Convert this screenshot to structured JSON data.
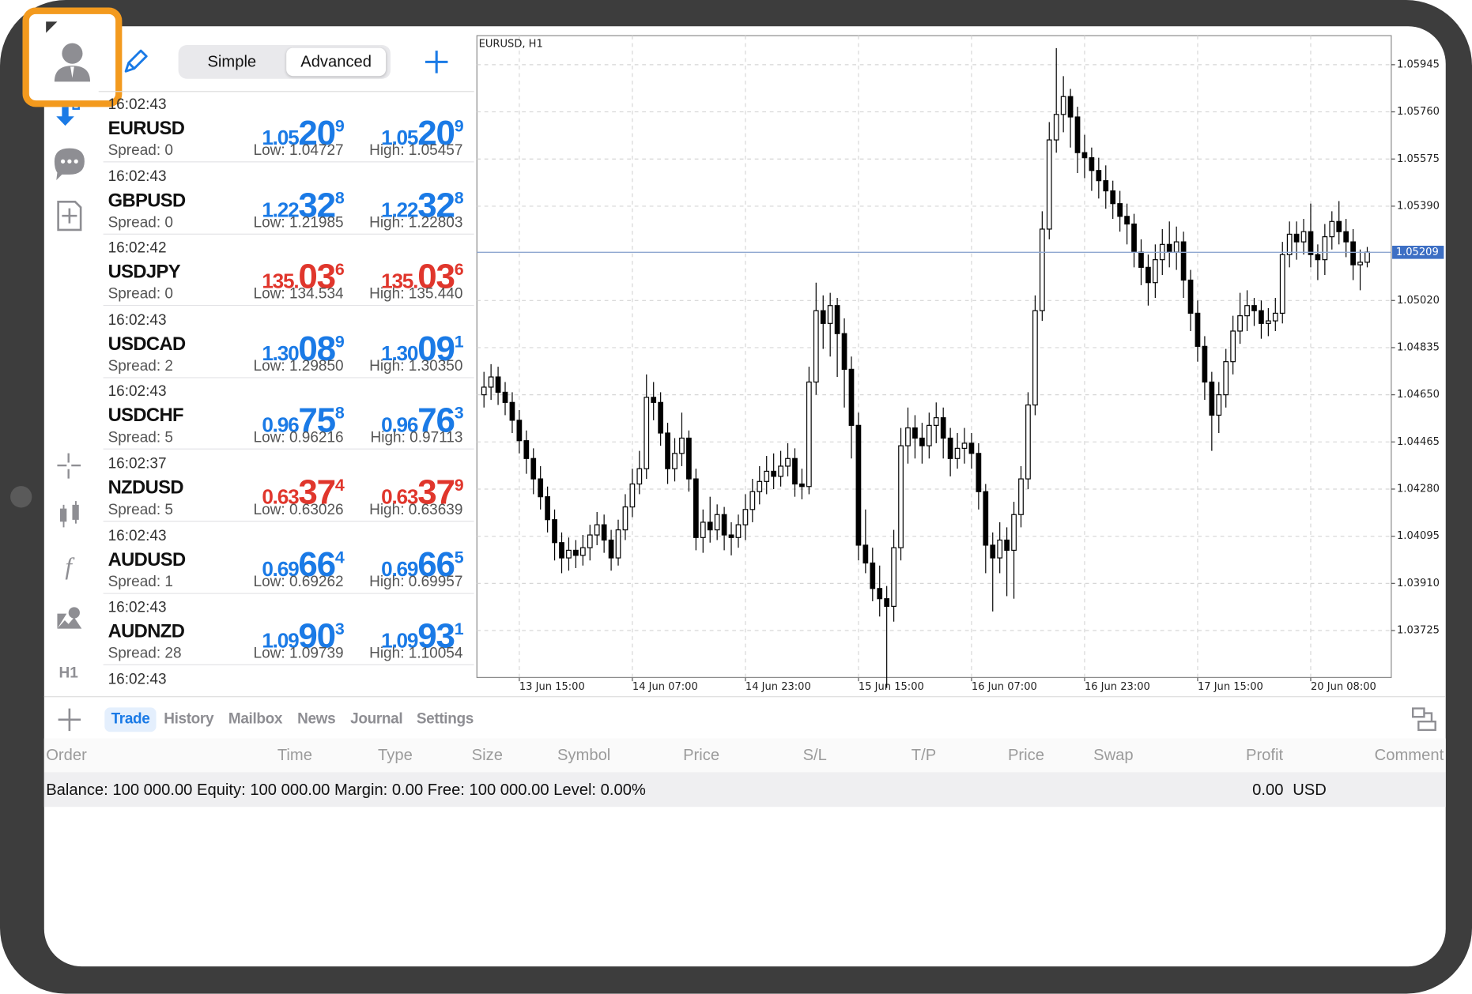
{
  "sidebar": {
    "timeframe": "H1"
  },
  "toolbar": {
    "modes": [
      "Simple",
      "Advanced"
    ],
    "selected_mode": 1
  },
  "quotes": [
    {
      "time": "16:02:43",
      "symbol": "EURUSD",
      "spread": "Spread: 0",
      "bid": {
        "prefix": "1.05",
        "big": "20",
        "last": "9"
      },
      "ask": {
        "prefix": "1.05",
        "big": "20",
        "last": "9"
      },
      "low": "Low: 1.04727",
      "high": "High: 1.05457",
      "color": "#1a7ae6"
    },
    {
      "time": "16:02:43",
      "symbol": "GBPUSD",
      "spread": "Spread: 0",
      "bid": {
        "prefix": "1.22",
        "big": "32",
        "last": "8"
      },
      "ask": {
        "prefix": "1.22",
        "big": "32",
        "last": "8"
      },
      "low": "Low: 1.21985",
      "high": "High: 1.22803",
      "color": "#1a7ae6"
    },
    {
      "time": "16:02:42",
      "symbol": "USDJPY",
      "spread": "Spread: 0",
      "bid": {
        "prefix": "135.",
        "big": "03",
        "last": "6"
      },
      "ask": {
        "prefix": "135.",
        "big": "03",
        "last": "6"
      },
      "low": "Low: 134.534",
      "high": "High: 135.440",
      "color": "#e0362c"
    },
    {
      "time": "16:02:43",
      "symbol": "USDCAD",
      "spread": "Spread: 2",
      "bid": {
        "prefix": "1.30",
        "big": "08",
        "last": "9"
      },
      "ask": {
        "prefix": "1.30",
        "big": "09",
        "last": "1"
      },
      "low": "Low: 1.29850",
      "high": "High: 1.30350",
      "color": "#1a7ae6"
    },
    {
      "time": "16:02:43",
      "symbol": "USDCHF",
      "spread": "Spread: 5",
      "bid": {
        "prefix": "0.96",
        "big": "75",
        "last": "8"
      },
      "ask": {
        "prefix": "0.96",
        "big": "76",
        "last": "3"
      },
      "low": "Low: 0.96216",
      "high": "High: 0.97113",
      "color": "#1a7ae6"
    },
    {
      "time": "16:02:37",
      "symbol": "NZDUSD",
      "spread": "Spread: 5",
      "bid": {
        "prefix": "0.63",
        "big": "37",
        "last": "4"
      },
      "ask": {
        "prefix": "0.63",
        "big": "37",
        "last": "9"
      },
      "low": "Low: 0.63026",
      "high": "High: 0.63639",
      "color": "#e0362c"
    },
    {
      "time": "16:02:43",
      "symbol": "AUDUSD",
      "spread": "Spread: 1",
      "bid": {
        "prefix": "0.69",
        "big": "66",
        "last": "4"
      },
      "ask": {
        "prefix": "0.69",
        "big": "66",
        "last": "5"
      },
      "low": "Low: 0.69262",
      "high": "High: 0.69957",
      "color": "#1a7ae6"
    },
    {
      "time": "16:02:43",
      "symbol": "AUDNZD",
      "spread": "Spread: 28",
      "bid": {
        "prefix": "1.09",
        "big": "90",
        "last": "3"
      },
      "ask": {
        "prefix": "1.09",
        "big": "93",
        "last": "1"
      },
      "low": "Low: 1.09739",
      "high": "High: 1.10054",
      "color": "#1a7ae6"
    }
  ],
  "partial_quote_time": "16:02:43",
  "chart_data": {
    "type": "candlestick",
    "title": "EURUSD, H1",
    "open": [
      1.0465,
      1.0468,
      1.0472,
      1.0466,
      1.0462,
      1.0455,
      1.0447,
      1.044,
      1.0432,
      1.0425,
      1.0416,
      1.0407,
      1.0401,
      1.0404,
      1.0402,
      1.0405,
      1.041,
      1.0414,
      1.0408,
      1.0401,
      1.0412,
      1.0421,
      1.043,
      1.0436,
      1.0464,
      1.0462,
      1.045,
      1.0436,
      1.0442,
      1.0448,
      1.0432,
      1.0409,
      1.0415,
      1.0412,
      1.0418,
      1.041,
      1.0409,
      1.0414,
      1.042,
      1.0427,
      1.0431,
      1.0435,
      1.0433,
      1.0437,
      1.044,
      1.043,
      1.0429,
      1.047,
      1.0498,
      1.0493,
      1.05,
      1.0489,
      1.0475,
      1.0453,
      1.0406,
      1.0399,
      1.0389,
      1.0385,
      1.0382,
      1.0405,
      1.0445,
      1.0452,
      1.0448,
      1.0445,
      1.0453,
      1.0456,
      1.0448,
      1.044,
      1.0444,
      1.0446,
      1.0442,
      1.0427,
      1.0406,
      1.0401,
      1.0408,
      1.0404,
      1.0418,
      1.0432,
      1.0461,
      1.0498,
      1.053,
      1.0565,
      1.0575,
      1.0582,
      1.0574,
      1.056,
      1.0558,
      1.0553,
      1.0549,
      1.0545,
      1.054,
      1.0535,
      1.0532,
      1.0521,
      1.0515,
      1.0509,
      1.0518,
      1.0524,
      1.0521,
      1.0525,
      1.051,
      1.0497,
      1.0484,
      1.047,
      1.0457,
      1.0465,
      1.0478,
      1.049,
      1.0496,
      1.05,
      1.0498,
      1.0493,
      1.0494,
      1.0497,
      1.052,
      1.0528,
      1.0525,
      1.0529,
      1.052,
      1.0518,
      1.0527,
      1.0533,
      1.0529,
      1.0525,
      1.0516,
      1.0517
    ],
    "close": [
      1.0468,
      1.0472,
      1.0466,
      1.0462,
      1.0455,
      1.0447,
      1.044,
      1.0432,
      1.0425,
      1.0416,
      1.0407,
      1.0401,
      1.0404,
      1.0402,
      1.0405,
      1.041,
      1.0414,
      1.0408,
      1.0401,
      1.0412,
      1.0421,
      1.043,
      1.0436,
      1.0464,
      1.0462,
      1.045,
      1.0436,
      1.0442,
      1.0448,
      1.0432,
      1.0409,
      1.0415,
      1.0412,
      1.0418,
      1.041,
      1.0409,
      1.0414,
      1.042,
      1.0427,
      1.0431,
      1.0435,
      1.0433,
      1.0437,
      1.044,
      1.043,
      1.0429,
      1.047,
      1.0498,
      1.0493,
      1.05,
      1.0489,
      1.0475,
      1.0453,
      1.0406,
      1.0399,
      1.0389,
      1.0385,
      1.0382,
      1.0405,
      1.0445,
      1.0452,
      1.0448,
      1.0445,
      1.0453,
      1.0456,
      1.0448,
      1.044,
      1.0444,
      1.0446,
      1.0442,
      1.0427,
      1.0406,
      1.0401,
      1.0408,
      1.0404,
      1.0418,
      1.0432,
      1.0461,
      1.0498,
      1.053,
      1.0565,
      1.0575,
      1.0582,
      1.0574,
      1.056,
      1.0558,
      1.0553,
      1.0549,
      1.0545,
      1.054,
      1.0535,
      1.0532,
      1.0521,
      1.0515,
      1.0509,
      1.0518,
      1.0524,
      1.0521,
      1.0525,
      1.051,
      1.0497,
      1.0484,
      1.047,
      1.0457,
      1.0465,
      1.0478,
      1.049,
      1.0496,
      1.05,
      1.0498,
      1.0493,
      1.0494,
      1.0497,
      1.052,
      1.0528,
      1.0525,
      1.0529,
      1.052,
      1.0518,
      1.0527,
      1.0533,
      1.0529,
      1.0525,
      1.0516,
      1.0517,
      1.0521
    ],
    "high": [
      1.0474,
      1.0477,
      1.0476,
      1.047,
      1.0466,
      1.0459,
      1.0451,
      1.0444,
      1.0437,
      1.0429,
      1.042,
      1.0411,
      1.0409,
      1.0408,
      1.041,
      1.0414,
      1.0419,
      1.0418,
      1.0412,
      1.0416,
      1.0426,
      1.0436,
      1.0443,
      1.0473,
      1.047,
      1.0466,
      1.0454,
      1.0448,
      1.0458,
      1.0451,
      1.0436,
      1.042,
      1.0425,
      1.0422,
      1.0421,
      1.0415,
      1.0418,
      1.0426,
      1.0432,
      1.0437,
      1.0441,
      1.0442,
      1.0443,
      1.0446,
      1.0444,
      1.0436,
      1.0476,
      1.0509,
      1.0504,
      1.0505,
      1.0503,
      1.0495,
      1.048,
      1.0458,
      1.042,
      1.0405,
      1.0398,
      1.039,
      1.0412,
      1.0452,
      1.046,
      1.0457,
      1.0454,
      1.0458,
      1.0462,
      1.046,
      1.0452,
      1.045,
      1.0452,
      1.045,
      1.0446,
      1.043,
      1.0411,
      1.0415,
      1.0413,
      1.0423,
      1.0437,
      1.0466,
      1.0504,
      1.0537,
      1.0572,
      1.0601,
      1.059,
      1.0585,
      1.0578,
      1.0567,
      1.0562,
      1.0558,
      1.0555,
      1.0549,
      1.0545,
      1.054,
      1.0536,
      1.0526,
      1.052,
      1.0524,
      1.053,
      1.0533,
      1.0531,
      1.0529,
      1.0514,
      1.0502,
      1.0488,
      1.0474,
      1.047,
      1.0483,
      1.0496,
      1.0505,
      1.0506,
      1.0503,
      1.0502,
      1.0499,
      1.0503,
      1.0525,
      1.0533,
      1.0533,
      1.0534,
      1.054,
      1.0524,
      1.0532,
      1.0537,
      1.0541,
      1.0534,
      1.053,
      1.0522,
      1.0523
    ],
    "low": [
      1.046,
      1.0463,
      1.0461,
      1.0457,
      1.045,
      1.0442,
      1.0434,
      1.0426,
      1.042,
      1.0411,
      1.04,
      1.0395,
      1.0396,
      1.0397,
      1.0398,
      1.04,
      1.0406,
      1.0403,
      1.0396,
      1.0398,
      1.0408,
      1.0417,
      1.0426,
      1.0432,
      1.0455,
      1.0445,
      1.043,
      1.0431,
      1.0437,
      1.0427,
      1.0404,
      1.0403,
      1.0407,
      1.0408,
      1.0404,
      1.0402,
      1.0405,
      1.0408,
      1.0415,
      1.0422,
      1.0426,
      1.0428,
      1.0429,
      1.0433,
      1.0425,
      1.0424,
      1.0426,
      1.0465,
      1.0483,
      1.048,
      1.0472,
      1.046,
      1.044,
      1.04,
      1.0395,
      1.0384,
      1.0378,
      1.035,
      1.0376,
      1.04,
      1.0438,
      1.044,
      1.0438,
      1.044,
      1.0446,
      1.044,
      1.0433,
      1.0436,
      1.0438,
      1.0436,
      1.042,
      1.0395,
      1.038,
      1.0395,
      1.0386,
      1.0385,
      1.0413,
      1.0428,
      1.0457,
      1.0494,
      1.0526,
      1.056,
      1.0568,
      1.0562,
      1.0552,
      1.055,
      1.0545,
      1.0542,
      1.0538,
      1.0534,
      1.0529,
      1.0524,
      1.0515,
      1.0508,
      1.05,
      1.0503,
      1.0512,
      1.0515,
      1.0514,
      1.0503,
      1.049,
      1.0478,
      1.0463,
      1.0443,
      1.045,
      1.046,
      1.0473,
      1.0485,
      1.049,
      1.0492,
      1.0487,
      1.0488,
      1.049,
      1.0493,
      1.0515,
      1.0518,
      1.052,
      1.0515,
      1.051,
      1.0512,
      1.0522,
      1.0524,
      1.0519,
      1.051,
      1.0506,
      1.0515
    ],
    "xlim": [
      -1,
      128.4
    ],
    "xticks": [
      {
        "value": 5,
        "label": "13 Jun 15:00"
      },
      {
        "value": 21,
        "label": "14 Jun 07:00"
      },
      {
        "value": 37,
        "label": "14 Jun 23:00"
      },
      {
        "value": 53,
        "label": "15 Jun 15:00"
      },
      {
        "value": 69,
        "label": "16 Jun 07:00"
      },
      {
        "value": 85,
        "label": "16 Jun 23:00"
      },
      {
        "value": 101,
        "label": "17 Jun 15:00"
      },
      {
        "value": 117,
        "label": "20 Jun 08:00"
      }
    ],
    "ylim": [
      1.03541,
      1.06059
    ],
    "yticks": [
      1.05945,
      {
        "value": 1.0576,
        "label": "1.05760"
      },
      1.05575,
      {
        "value": 1.0539,
        "label": "1.05390"
      },
      {
        "value": 1.0502,
        "label": "1.05020"
      },
      1.04835,
      {
        "value": 1.0465,
        "label": "1.04650"
      },
      1.04465,
      {
        "value": 1.0428,
        "label": "1.04280"
      },
      1.04095,
      {
        "value": 1.0391,
        "label": "1.03910"
      },
      1.03725
    ],
    "current_price": 1.05209,
    "grid": true,
    "up_color": "#ffffff",
    "down_color": "#000000",
    "line_color": "#000000",
    "price_line_color": "#8fa7d0",
    "price_label_color": "#3d6fc4"
  },
  "tabs": [
    "Trade",
    "History",
    "Mailbox",
    "News",
    "Journal",
    "Settings"
  ],
  "active_tab": 0,
  "table_headers": [
    "Order",
    "Time",
    "Type",
    "Size",
    "Symbol",
    "Price",
    "S/L",
    "T/P",
    "Price",
    "Swap",
    "Profit",
    "Comment"
  ],
  "balance": {
    "summary": "Balance: 100 000.00 Equity: 100 000.00 Margin: 0.00 Free: 100 000.00 Level: 0.00%",
    "profit": "0.00",
    "currency": "USD"
  }
}
